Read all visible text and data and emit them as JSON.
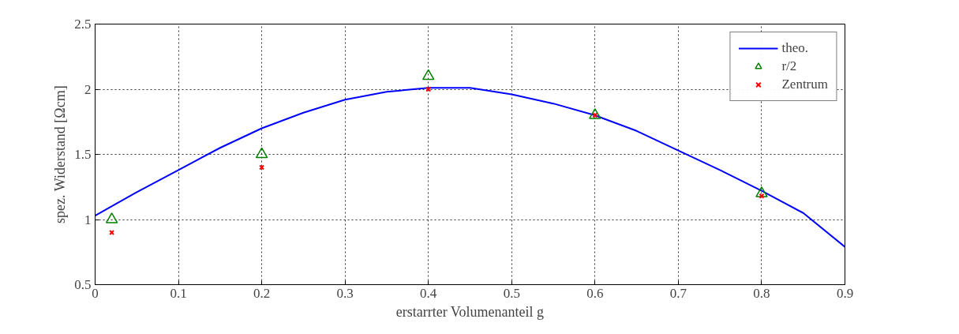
{
  "chart_data": {
    "type": "line",
    "xlabel": "erstarrter Volumenanteil g",
    "ylabel": "spez. Widerstand [Ωcm]",
    "xlim": [
      0,
      0.9
    ],
    "ylim": [
      0.5,
      2.5
    ],
    "xticks": [
      0,
      0.1,
      0.2,
      0.3,
      0.4,
      0.5,
      0.6,
      0.7,
      0.8,
      0.9
    ],
    "yticks": [
      0.5,
      1,
      1.5,
      2,
      2.5
    ],
    "grid": true,
    "legend": "top right",
    "series": [
      {
        "name": "theo.",
        "color": "#0000ff",
        "line_style": "solid",
        "marker": "none",
        "x": [
          0,
          0.05,
          0.1,
          0.15,
          0.2,
          0.25,
          0.3,
          0.35,
          0.4,
          0.45,
          0.5,
          0.55,
          0.6,
          0.65,
          0.7,
          0.75,
          0.8,
          0.85,
          0.9
        ],
        "values": [
          1.03,
          1.21,
          1.38,
          1.55,
          1.7,
          1.82,
          1.92,
          1.98,
          2.01,
          2.01,
          1.96,
          1.89,
          1.8,
          1.68,
          1.53,
          1.38,
          1.22,
          1.05,
          0.79
        ]
      },
      {
        "name": "r/2",
        "type": "scatter",
        "color": "#008000",
        "marker": "triangle",
        "x": [
          0.02,
          0.2,
          0.4,
          0.6,
          0.8
        ],
        "values": [
          1.0,
          1.5,
          2.1,
          1.8,
          1.2
        ]
      },
      {
        "name": "Zentrum",
        "type": "scatter",
        "color": "#ff0000",
        "marker": "cross",
        "x": [
          0.02,
          0.2,
          0.4,
          0.6,
          0.8
        ],
        "values": [
          0.9,
          1.4,
          2.0,
          1.8,
          1.18
        ]
      }
    ]
  }
}
